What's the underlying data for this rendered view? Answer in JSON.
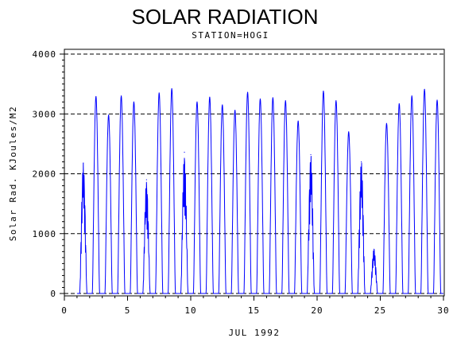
{
  "chart_data": {
    "type": "line",
    "title": "SOLAR RADIATION",
    "subtitle": "STATION=HOGI",
    "xlabel": "JUL 1992",
    "ylabel": "Solar Rad. KJoules/M2",
    "xlim": [
      0,
      30
    ],
    "ylim": [
      0,
      4000
    ],
    "xticks": [
      0,
      5,
      10,
      15,
      20,
      25,
      30
    ],
    "yticks": [
      0,
      1000,
      2000,
      3000,
      4000
    ],
    "grid": "horizontal-dashed",
    "series": [
      {
        "color": "#0000ff",
        "daily_peaks": [
          {
            "day": 1,
            "peak": 2180
          },
          {
            "day": 2,
            "peak": 3290
          },
          {
            "day": 3,
            "peak": 2980
          },
          {
            "day": 4,
            "peak": 3300
          },
          {
            "day": 5,
            "peak": 3200
          },
          {
            "day": 6,
            "peak": 1900
          },
          {
            "day": 7,
            "peak": 3350
          },
          {
            "day": 8,
            "peak": 3420
          },
          {
            "day": 9,
            "peak": 2360
          },
          {
            "day": 10,
            "peak": 3200
          },
          {
            "day": 11,
            "peak": 3280
          },
          {
            "day": 12,
            "peak": 3150
          },
          {
            "day": 13,
            "peak": 3060
          },
          {
            "day": 14,
            "peak": 3360
          },
          {
            "day": 15,
            "peak": 3250
          },
          {
            "day": 16,
            "peak": 3270
          },
          {
            "day": 17,
            "peak": 3220
          },
          {
            "day": 18,
            "peak": 2880
          },
          {
            "day": 19,
            "peak": 2320
          },
          {
            "day": 20,
            "peak": 3380
          },
          {
            "day": 21,
            "peak": 3220
          },
          {
            "day": 22,
            "peak": 2700
          },
          {
            "day": 23,
            "peak": 2200
          },
          {
            "day": 24,
            "peak": 740
          },
          {
            "day": 25,
            "peak": 2840
          },
          {
            "day": 26,
            "peak": 3170
          },
          {
            "day": 27,
            "peak": 3300
          },
          {
            "day": 28,
            "peak": 3410
          },
          {
            "day": 29,
            "peak": 3230
          }
        ]
      }
    ]
  }
}
